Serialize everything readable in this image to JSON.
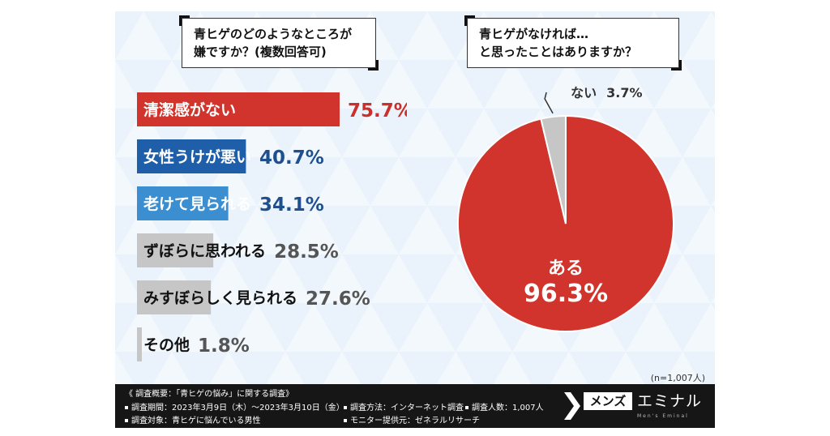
{
  "colors": {
    "red": "#d0342c",
    "dark_blue": "#1f5ea8",
    "light_blue": "#3b8fd0",
    "gray": "#c6c6c6",
    "red_text": "#c9302c",
    "blue_text": "#1f4f8f",
    "gray_text": "#555555",
    "background": "#eaf2fb",
    "footer": "#161616"
  },
  "left_question": {
    "line1": "青ヒゲのどのようなところが",
    "line2": "嫌ですか？(複数回答可)"
  },
  "right_question": {
    "line1": "青ヒゲがなければ…",
    "line2": "と思ったことはありますか？"
  },
  "chart_data": [
    {
      "type": "bar",
      "orientation": "horizontal",
      "categories": [
        "清潔感がない",
        "女性うけが悪い",
        "老けて見られる",
        "ずぼらに思われる",
        "みすぼらしく見られる",
        "その他"
      ],
      "values": [
        75.7,
        40.7,
        34.1,
        28.5,
        27.6,
        1.8
      ],
      "value_labels": [
        "75.7%",
        "40.7%",
        "34.1%",
        "28.5%",
        "27.6%",
        "1.8%"
      ],
      "bar_colors": [
        "#d0342c",
        "#1f5ea8",
        "#3b8fd0",
        "#c6c6c6",
        "#c6c6c6",
        "#c6c6c6"
      ],
      "value_colors": [
        "#c9302c",
        "#1f4f8f",
        "#1f4f8f",
        "#555555",
        "#555555",
        "#555555"
      ],
      "label_colors": [
        "#ffffff",
        "#ffffff",
        "#ffffff",
        "#111111",
        "#111111",
        "#111111"
      ],
      "xlim": [
        0,
        100
      ]
    },
    {
      "type": "pie",
      "categories": [
        "ある",
        "ない"
      ],
      "values": [
        96.3,
        3.7
      ],
      "value_labels": [
        "96.3%",
        "3.7%"
      ],
      "colors": [
        "#d0342c",
        "#c6c6c6"
      ]
    }
  ],
  "sample_size": "(n=1,007人)",
  "footer": {
    "title": "《 調査概要：「青ヒゲの悩み」に関する調査》",
    "period": "調査期間：2023年3月9日（木）～2023年3月10日（金）",
    "target": "調査対象：青ヒゲに悩んでいる男性",
    "method": "調査方法：インターネット調査",
    "provider": "モニター提供元：ゼネラルリサーチ",
    "count": "調査人数：1,007人"
  },
  "brand": {
    "box_label": "メンズ",
    "name": "エミナル",
    "sub": "Men's Eminal"
  }
}
